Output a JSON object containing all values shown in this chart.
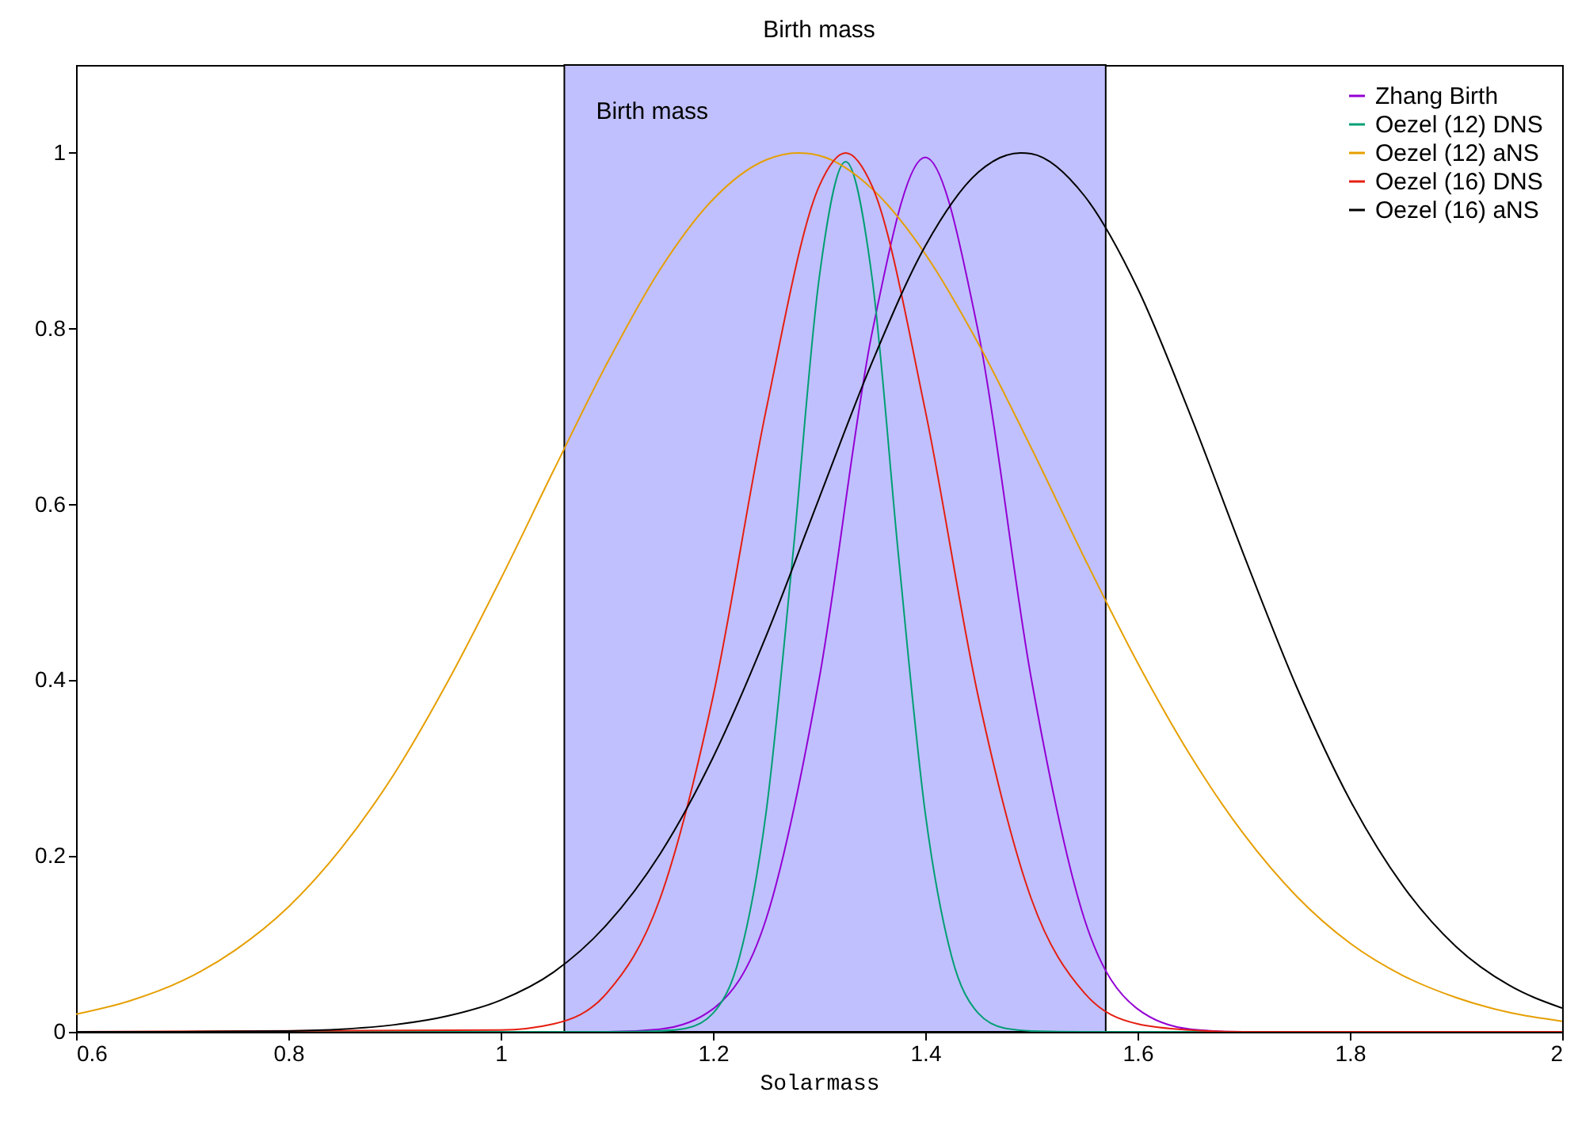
{
  "chart_data": {
    "type": "line",
    "title": "Birth mass",
    "xlabel": "Solarmass",
    "xlim": [
      0.6,
      2
    ],
    "ylim": [
      0,
      1.1
    ],
    "xticks": [
      0.6,
      0.8,
      1,
      1.2,
      1.4,
      1.6,
      1.8,
      2
    ],
    "yticks": [
      0,
      0.2,
      0.4,
      0.6,
      0.8,
      1
    ],
    "legend": "top right",
    "bands": [
      {
        "axis": "x",
        "from": 1.06,
        "to": 1.57,
        "label": "Birth mass",
        "color": "#c0c0ff"
      }
    ],
    "series": [
      {
        "name": "Zhang Birth",
        "color": "#9400d3",
        "x": [
          0.6,
          1.1,
          1.15,
          1.2,
          1.25,
          1.3,
          1.35,
          1.4,
          1.45,
          1.5,
          1.55,
          1.6,
          1.65,
          1.7,
          2
        ],
        "values": [
          0,
          0,
          0.003,
          0.026,
          0.128,
          0.401,
          0.796,
          0.995,
          0.796,
          0.401,
          0.128,
          0.026,
          0.003,
          0,
          0
        ]
      },
      {
        "name": "Oezel (12) DNS",
        "color": "#009e73",
        "x": [
          0.6,
          1.1,
          1.15,
          1.175,
          1.2,
          1.225,
          1.25,
          1.275,
          1.3,
          1.325,
          1.35,
          1.375,
          1.4,
          1.425,
          1.45,
          1.475,
          1.5,
          1.55,
          2
        ],
        "values": [
          0,
          0,
          0.001,
          0.004,
          0.021,
          0.085,
          0.249,
          0.539,
          0.857,
          0.99,
          0.857,
          0.539,
          0.249,
          0.085,
          0.021,
          0.004,
          0.001,
          0,
          0
        ]
      },
      {
        "name": "Oezel (12) aNS",
        "color": "#e69f00",
        "x": [
          0.6,
          0.65,
          0.7,
          0.75,
          0.8,
          0.85,
          0.9,
          0.95,
          1,
          1.05,
          1.1,
          1.15,
          1.2,
          1.25,
          1.28,
          1.3,
          1.35,
          1.4,
          1.45,
          1.5,
          1.55,
          1.6,
          1.65,
          1.7,
          1.75,
          1.8,
          1.85,
          1.9,
          1.95,
          2
        ],
        "values": [
          0.02,
          0.035,
          0.058,
          0.093,
          0.142,
          0.209,
          0.294,
          0.398,
          0.515,
          0.639,
          0.76,
          0.867,
          0.947,
          0.992,
          1,
          0.997,
          0.959,
          0.885,
          0.783,
          0.664,
          0.539,
          0.42,
          0.314,
          0.225,
          0.154,
          0.101,
          0.064,
          0.039,
          0.022,
          0.012
        ]
      },
      {
        "name": "Oezel (16) DNS",
        "color": "#e51e10",
        "x": [
          0.6,
          1,
          1.05,
          1.1,
          1.15,
          1.2,
          1.25,
          1.3,
          1.325,
          1.35,
          1.4,
          1.45,
          1.5,
          1.55,
          1.6,
          1.65,
          1.7,
          2
        ],
        "values": [
          0,
          0.002,
          0.009,
          0.044,
          0.151,
          0.381,
          0.707,
          0.962,
          1,
          0.962,
          0.707,
          0.381,
          0.151,
          0.044,
          0.009,
          0.002,
          0,
          0
        ]
      },
      {
        "name": "Oezel (16) aNS",
        "color": "#000000",
        "x": [
          0.6,
          0.7,
          0.8,
          0.85,
          0.9,
          0.95,
          1,
          1.05,
          1.1,
          1.15,
          1.2,
          1.25,
          1.3,
          1.35,
          1.4,
          1.45,
          1.49,
          1.5,
          1.55,
          1.6,
          1.65,
          1.7,
          1.75,
          1.8,
          1.85,
          1.9,
          1.95,
          2
        ],
        "values": [
          0,
          0,
          0.001,
          0.003,
          0.008,
          0.018,
          0.036,
          0.068,
          0.122,
          0.202,
          0.312,
          0.45,
          0.607,
          0.762,
          0.894,
          0.978,
          1,
          0.999,
          0.951,
          0.846,
          0.701,
          0.543,
          0.392,
          0.264,
          0.166,
          0.097,
          0.053,
          0.027
        ]
      }
    ]
  }
}
